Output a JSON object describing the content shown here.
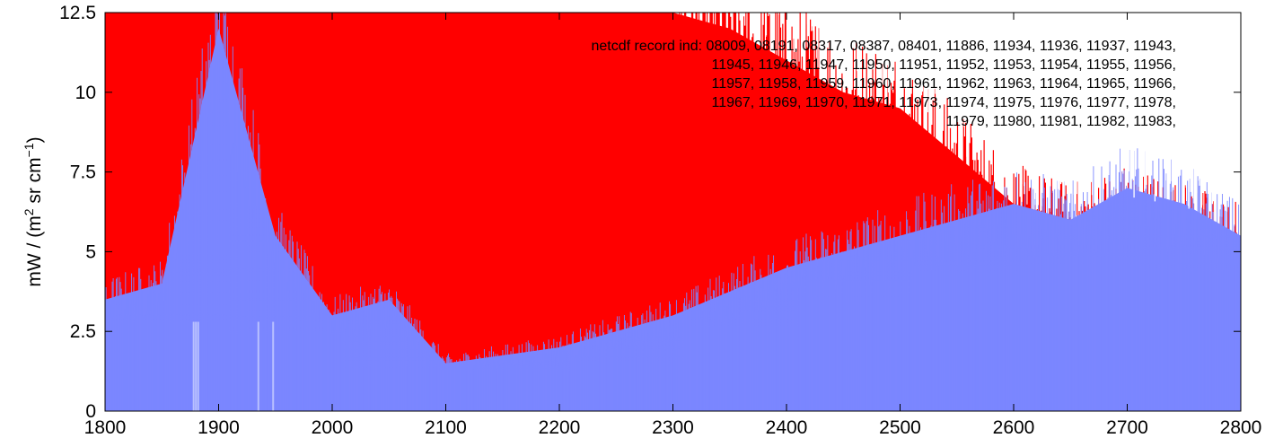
{
  "chart_data": {
    "type": "line",
    "title": "",
    "xlabel": "",
    "ylabel": "mW / (m",
    "ylabel_sup": "2",
    "ylabel_mid": " sr cm",
    "ylabel_sup2": "−1",
    "ylabel_end": ")",
    "xlim": [
      1800,
      2800
    ],
    "ylim": [
      0,
      12.5
    ],
    "x_ticks": [
      "1800",
      "1900",
      "2000",
      "2100",
      "2200",
      "2300",
      "2400",
      "2500",
      "2600",
      "2700",
      "2800"
    ],
    "y_ticks": [
      "0",
      "2.5",
      "5",
      "7.5",
      "10",
      "12.5"
    ],
    "annotation": [
      "netcdf record ind:  08009, 08191, 08317, 08387, 08401, 11886, 11934, 11936, 11937, 11943,",
      "11945, 11946, 11947, 11950, 11951, 11952, 11953, 11954, 11955, 11956,",
      "11957, 11958, 11959, 11960, 11961, 11962, 11963, 11964, 11965, 11966,",
      "11967, 11969, 11970, 11971, 11973, 11974, 11975, 11976, 11977, 11978,",
      "11979, 11980, 11981, 11982, 11983,"
    ],
    "series": [
      {
        "color": "#ff0000",
        "x": [
          1800,
          1850,
          1900,
          1950,
          2000,
          2050,
          2100,
          2150,
          2200,
          2250,
          2300,
          2350,
          2400,
          2450,
          2500,
          2550,
          2600,
          2650,
          2700,
          2750,
          2800
        ],
        "min": [
          0,
          0,
          0,
          0,
          0,
          0,
          0,
          0,
          0,
          0,
          0,
          0,
          0,
          0,
          0,
          0,
          0,
          0,
          0,
          0,
          0
        ],
        "max": [
          12.5,
          12.5,
          12.5,
          12.5,
          12.5,
          12.5,
          12.5,
          12.5,
          12.5,
          12.5,
          12.5,
          12.0,
          11.0,
          10.0,
          9.5,
          8.0,
          6.5,
          6.0,
          6.5,
          6.0,
          5.5
        ]
      },
      {
        "color": "#7b86ff",
        "x": [
          1800,
          1850,
          1900,
          1950,
          2000,
          2050,
          2100,
          2200,
          2300,
          2400,
          2500,
          2550,
          2600,
          2650,
          2700,
          2750,
          2800
        ],
        "min": [
          0,
          0,
          0,
          0,
          0,
          0,
          0,
          0,
          0,
          0,
          0,
          0,
          0,
          0,
          0,
          0,
          0
        ],
        "max": [
          3.5,
          4.0,
          12.0,
          5.5,
          3.0,
          3.5,
          1.5,
          2.0,
          3.0,
          4.5,
          5.5,
          6.0,
          6.5,
          6.0,
          7.0,
          6.5,
          5.5
        ]
      }
    ]
  }
}
